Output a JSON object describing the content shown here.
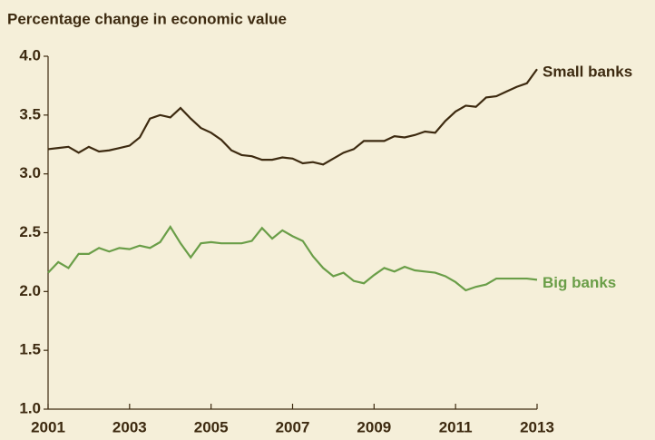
{
  "chart_data": {
    "type": "line",
    "title": "Percentage change in economic value",
    "x": [
      2001,
      2001.25,
      2001.5,
      2001.75,
      2002,
      2002.25,
      2002.5,
      2002.75,
      2003,
      2003.25,
      2003.5,
      2003.75,
      2004,
      2004.25,
      2004.5,
      2004.75,
      2005,
      2005.25,
      2005.5,
      2005.75,
      2006,
      2006.25,
      2006.5,
      2006.75,
      2007,
      2007.25,
      2007.5,
      2007.75,
      2008,
      2008.25,
      2008.5,
      2008.75,
      2009,
      2009.25,
      2009.5,
      2009.75,
      2010,
      2010.25,
      2010.5,
      2010.75,
      2011,
      2011.25,
      2011.5,
      2011.75,
      2012,
      2012.25,
      2012.5,
      2012.75,
      2013
    ],
    "series": [
      {
        "name": "Small banks",
        "color": "#3d2a10",
        "values": [
          3.21,
          3.22,
          3.23,
          3.18,
          3.23,
          3.19,
          3.2,
          3.22,
          3.24,
          3.31,
          3.47,
          3.5,
          3.48,
          3.56,
          3.47,
          3.39,
          3.35,
          3.29,
          3.2,
          3.16,
          3.15,
          3.12,
          3.12,
          3.14,
          3.13,
          3.09,
          3.1,
          3.08,
          3.13,
          3.18,
          3.21,
          3.28,
          3.28,
          3.28,
          3.32,
          3.31,
          3.33,
          3.36,
          3.35,
          3.45,
          3.53,
          3.58,
          3.57,
          3.65,
          3.66,
          3.7,
          3.74,
          3.77,
          3.89
        ]
      },
      {
        "name": "Big banks",
        "color": "#6a9e48",
        "values": [
          2.16,
          2.25,
          2.2,
          2.32,
          2.32,
          2.37,
          2.34,
          2.37,
          2.36,
          2.39,
          2.37,
          2.42,
          2.55,
          2.41,
          2.29,
          2.41,
          2.42,
          2.41,
          2.41,
          2.41,
          2.43,
          2.54,
          2.45,
          2.52,
          2.47,
          2.43,
          2.3,
          2.2,
          2.13,
          2.16,
          2.09,
          2.07,
          2.14,
          2.2,
          2.17,
          2.21,
          2.18,
          2.17,
          2.16,
          2.13,
          2.08,
          2.01,
          2.04,
          2.06,
          2.11,
          2.11,
          2.11,
          2.11,
          2.1
        ]
      }
    ],
    "xlim": [
      2001,
      2013
    ],
    "xticks": [
      2001,
      2003,
      2005,
      2007,
      2009,
      2011,
      2013
    ],
    "ylim": [
      1,
      4
    ],
    "yticks": [
      {
        "value": 1,
        "label": "1.0"
      },
      1.5,
      {
        "value": 2,
        "label": "2.0"
      },
      2.5,
      {
        "value": 3,
        "label": "3.0"
      },
      3.5,
      {
        "value": 4,
        "label": "4.0"
      }
    ],
    "grid": false
  }
}
